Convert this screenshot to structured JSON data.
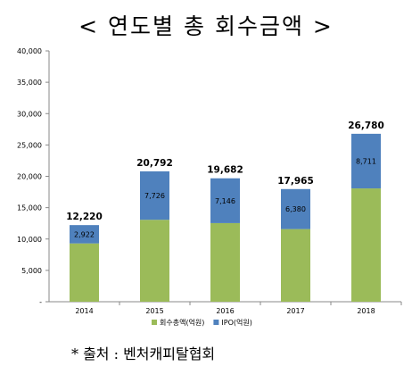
{
  "chart_data": {
    "type": "bar",
    "stacked": true,
    "title": "< 연도별 총 회수금액 >",
    "categories": [
      "2014",
      "2015",
      "2016",
      "2017",
      "2018"
    ],
    "series": [
      {
        "name": "회수총액(억원)",
        "color": "#9bbb59",
        "values": [
          9298,
          13066,
          12536,
          11585,
          18069
        ]
      },
      {
        "name": "IPO(억원)",
        "color": "#4f81bd",
        "values": [
          2922,
          7726,
          7146,
          6380,
          8711
        ]
      }
    ],
    "totals": [
      "12,220",
      "20,792",
      "19,682",
      "17,965",
      "26,780"
    ],
    "segment_labels": [
      "2,922",
      "7,726",
      "7,146",
      "6,380",
      "8,711"
    ],
    "yticks": [
      "-",
      "5,000",
      "10,000",
      "15,000",
      "20,000",
      "25,000",
      "30,000",
      "35,000",
      "40,000"
    ],
    "ylim": [
      0,
      40000
    ],
    "xlabel": "",
    "ylabel": "",
    "grid": false,
    "legend": "bottom"
  },
  "source_note": "* 출처 : 벤처캐피탈협회"
}
